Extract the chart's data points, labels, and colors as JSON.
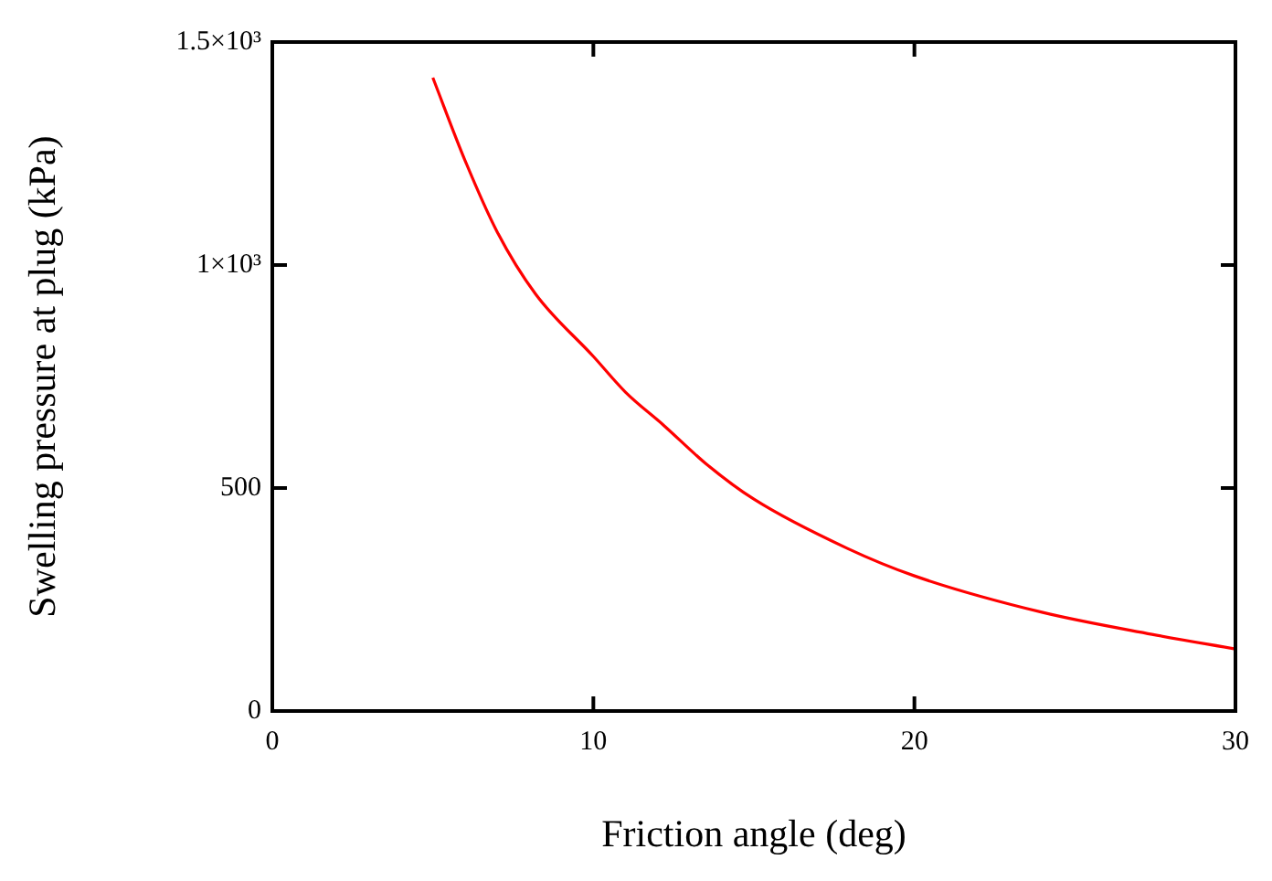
{
  "chart_data": {
    "type": "line",
    "xlabel": "Friction angle (deg)",
    "ylabel": "Swelling pressure at plug (kPa)",
    "x": [
      5,
      6,
      7,
      8.2,
      10,
      11,
      12.2,
      13.5,
      15,
      17.9,
      20,
      24,
      27.4,
      30
    ],
    "series": [
      {
        "color": "#ff0000",
        "values": [
          1420,
          1235,
          1075,
          935,
          795,
          715,
          640,
          555,
          475,
          365,
          303,
          221,
          172,
          139
        ]
      }
    ],
    "xlim": [
      0,
      30
    ],
    "xticks": [
      0,
      10,
      20,
      30
    ],
    "ylim": [
      0,
      1500
    ],
    "yticks": [
      0,
      500,
      {
        "value": 1000,
        "label": "1×10³"
      },
      {
        "value": 1500,
        "label": "1.5×10³"
      }
    ],
    "grid": false,
    "legend": false,
    "marker": "none",
    "line_style": "solid"
  }
}
